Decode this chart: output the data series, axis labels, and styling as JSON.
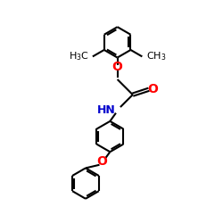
{
  "bg_color": "#ffffff",
  "bond_color": "#000000",
  "oxygen_color": "#ff0000",
  "nitrogen_color": "#0000cd",
  "line_width": 1.5,
  "dbo": 0.055,
  "font_size": 9,
  "figsize": [
    2.5,
    2.5
  ],
  "dpi": 100,
  "xlim": [
    -0.5,
    4.5
  ],
  "ylim": [
    -4.2,
    3.2
  ]
}
